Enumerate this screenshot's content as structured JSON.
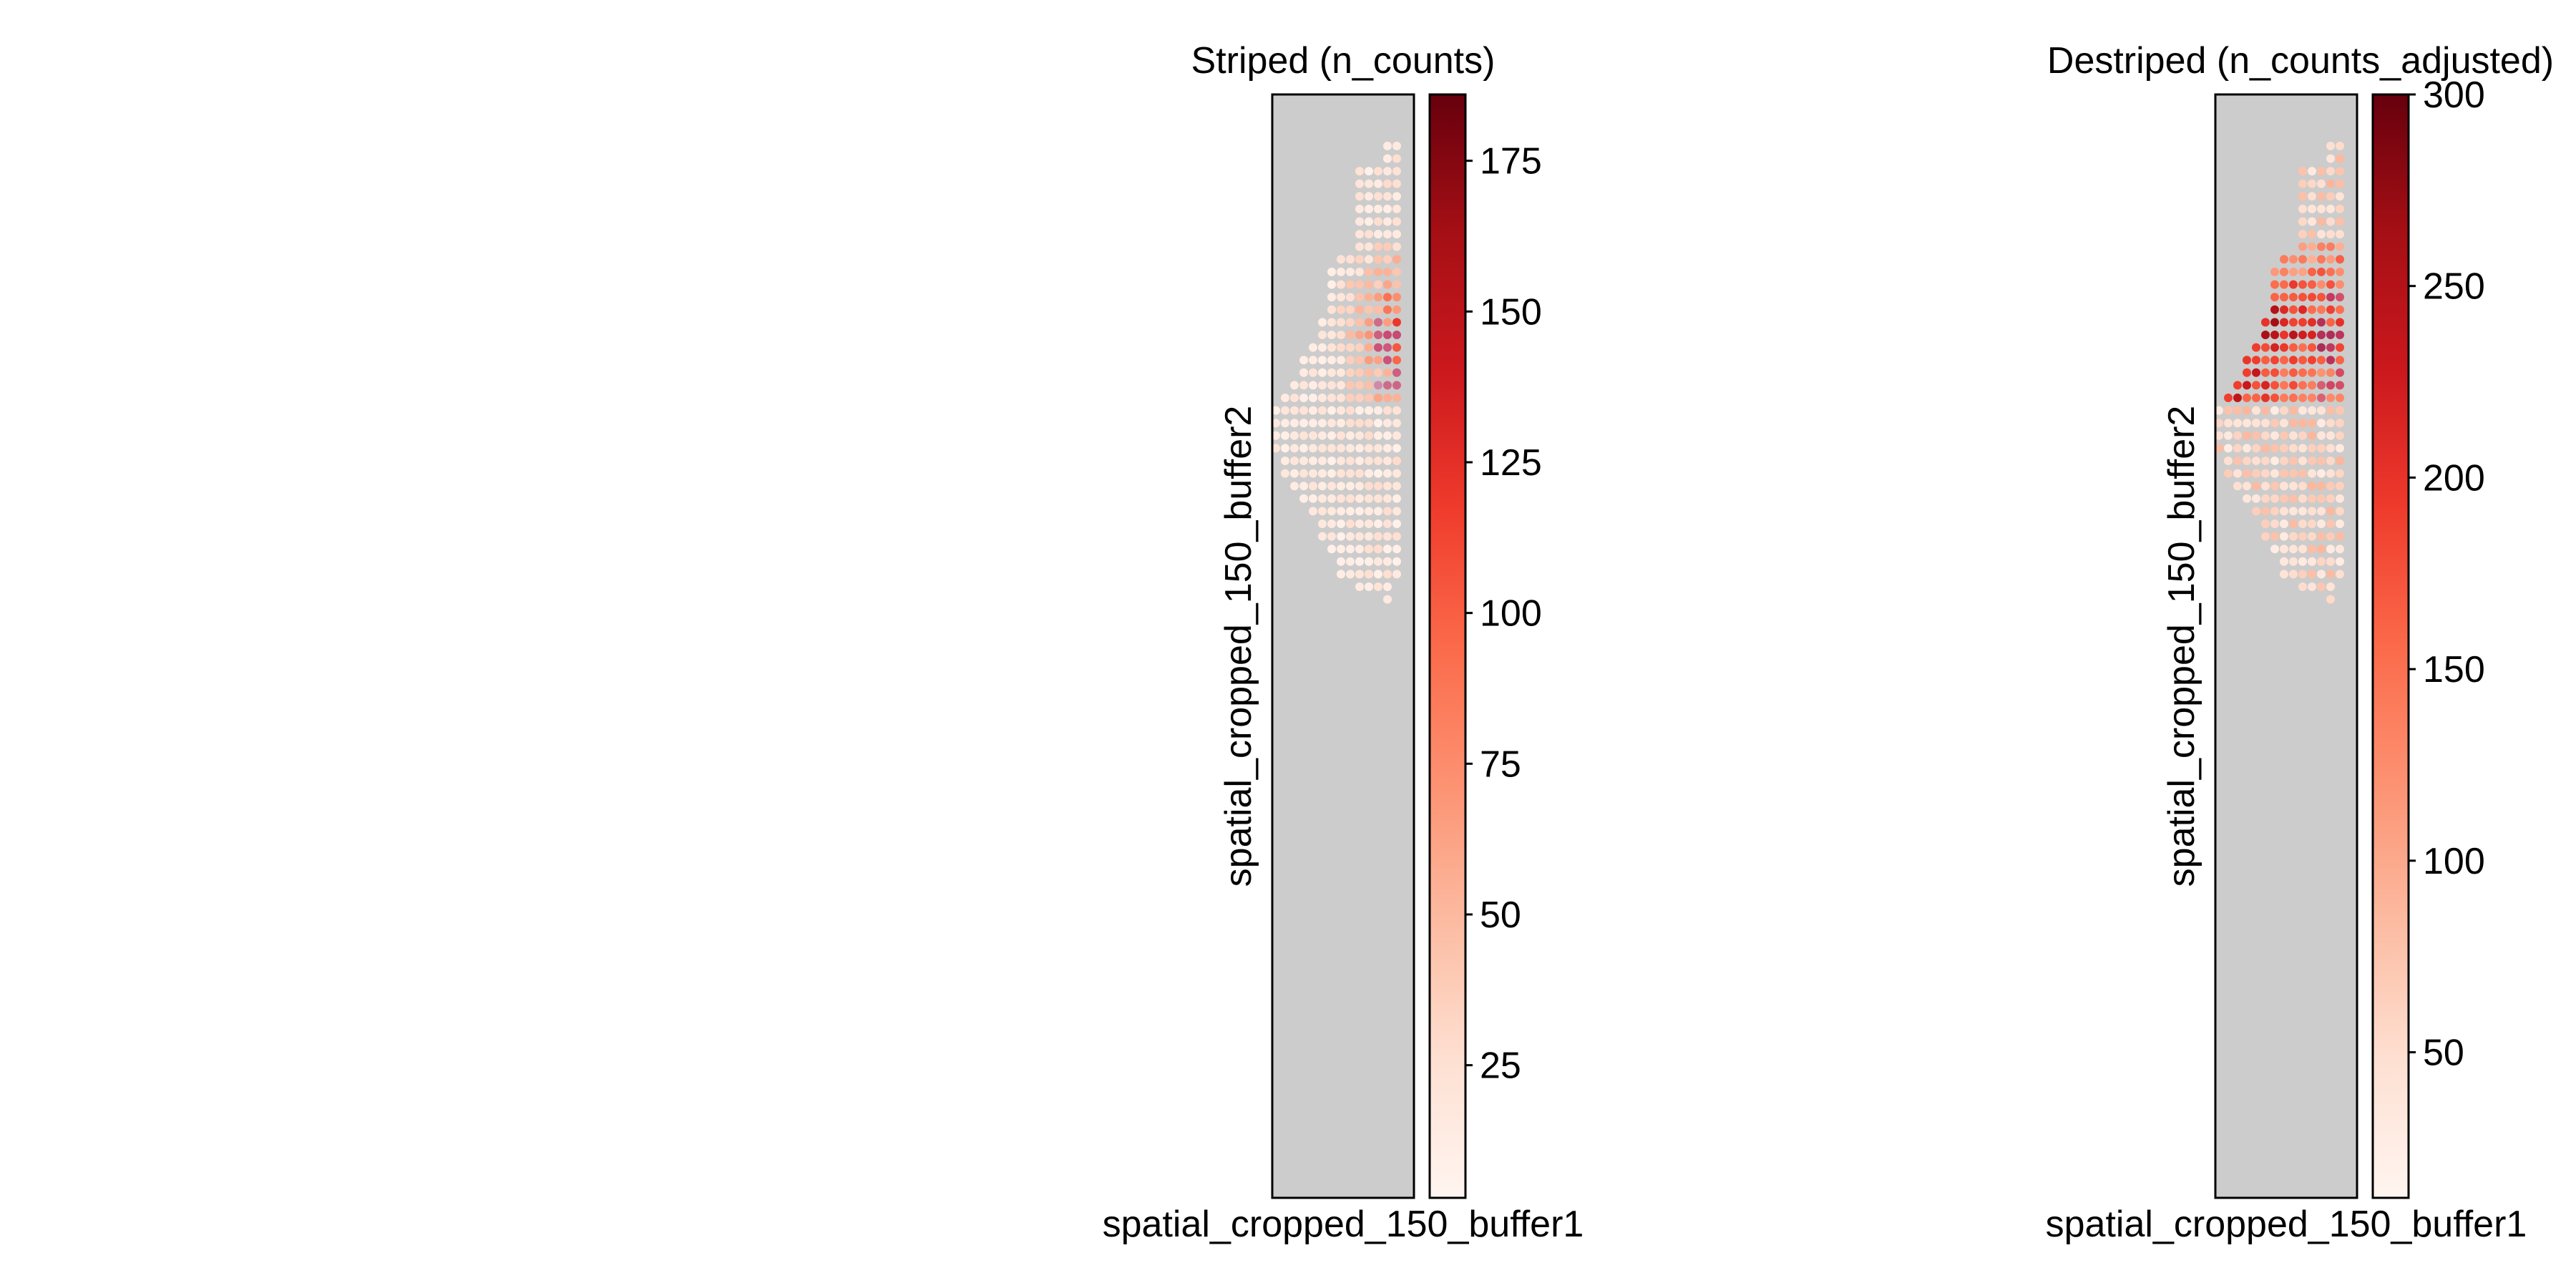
{
  "chart_data": [
    {
      "type": "scatter",
      "title": "Striped (n_counts)",
      "xlabel": "spatial_cropped_150_buffer1",
      "ylabel": "spatial_cropped_150_buffer2",
      "background_color": "#cccccc",
      "colormap": "Reds",
      "colorbar": {
        "range": [
          3,
          186
        ],
        "ticks": [
          25,
          50,
          75,
          100,
          125,
          150,
          175
        ]
      },
      "grid": false
    },
    {
      "type": "scatter",
      "title": "Destriped (n_counts_adjusted)",
      "xlabel": "spatial_cropped_150_buffer1",
      "ylabel": "spatial_cropped_150_buffer2",
      "background_color": "#cccccc",
      "colormap": "Reds",
      "colorbar": {
        "range": [
          12,
          300
        ],
        "ticks": [
          50,
          100,
          150,
          200,
          250,
          300
        ]
      },
      "grid": false
    }
  ],
  "colors": {
    "reds_colormap": [
      "#fff5f0",
      "#fee0d2",
      "#fcbba1",
      "#fc9272",
      "#fb6a4a",
      "#ef3b2c",
      "#cb181d",
      "#a50f15",
      "#67000d"
    ],
    "purple_tint": "#9a5cc8"
  }
}
